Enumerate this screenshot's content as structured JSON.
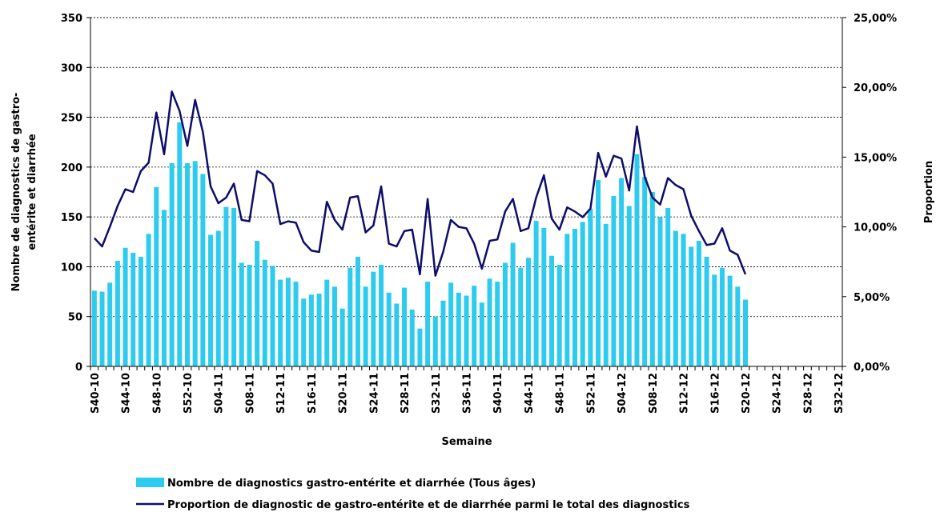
{
  "chart_data": {
    "type": "bar-line",
    "x_label": "Semaine",
    "y_label": [
      "Nombre de diagnostics de gastro-",
      "entérite et diarrhée"
    ],
    "y2_label": "Proportion",
    "categories": [
      "S40-10",
      null,
      null,
      null,
      "S44-10",
      null,
      null,
      null,
      "S48-10",
      null,
      null,
      null,
      "S52-10",
      null,
      null,
      null,
      "S04-11",
      null,
      null,
      null,
      "S08-11",
      null,
      null,
      null,
      "S12-11",
      null,
      null,
      null,
      "S16-11",
      null,
      null,
      null,
      "S20-11",
      null,
      null,
      null,
      "S24-11",
      null,
      null,
      null,
      "S28-11",
      null,
      null,
      null,
      "S32-11",
      null,
      null,
      null,
      "S36-11",
      null,
      null,
      null,
      "S40-11",
      null,
      null,
      null,
      "S44-11",
      null,
      null,
      null,
      "S48-11",
      null,
      null,
      null,
      "S52-11",
      null,
      null,
      null,
      "S04-12",
      null,
      null,
      null,
      "S08-12",
      null,
      null,
      null,
      "S12-12",
      null,
      null,
      null,
      "S16-12",
      null,
      null,
      null,
      "S20-12",
      null,
      null,
      null,
      "S24-12",
      null,
      null,
      null,
      "S28-12",
      null,
      null,
      null,
      "S32-12"
    ],
    "series": [
      {
        "name": "Nombre de diagnostics gastro-entérite et diarrhée (Tous âges)",
        "type": "bar",
        "color": "#2ccbef",
        "values": [
          76,
          75,
          84,
          106,
          119,
          114,
          110,
          133,
          180,
          157,
          204,
          245,
          204,
          206,
          193,
          132,
          136,
          160,
          159,
          104,
          102,
          126,
          107,
          101,
          87,
          89,
          85,
          68,
          72,
          73,
          87,
          80,
          58,
          99,
          110,
          80,
          95,
          102,
          74,
          63,
          79,
          57,
          38,
          85,
          50,
          66,
          84,
          74,
          71,
          81,
          64,
          88,
          85,
          104,
          124,
          99,
          109,
          146,
          139,
          111,
          102,
          133,
          138,
          145,
          158,
          187,
          143,
          171,
          189,
          161,
          213,
          190,
          175,
          150,
          159,
          136,
          133,
          120,
          126,
          110,
          92,
          99,
          91,
          80,
          67,
          null,
          null,
          null,
          null,
          null,
          null,
          null,
          null,
          null,
          null,
          null,
          null
        ]
      },
      {
        "name": "Proportion de diagnostic de gastro-entérite et de diarrhée parmi le total des diagnostics",
        "type": "line",
        "axis": "y2",
        "color": "#0d0d6b",
        "values": [
          9.2,
          8.6,
          10.0,
          11.5,
          12.7,
          12.5,
          14.0,
          14.6,
          18.2,
          15.2,
          19.7,
          18.3,
          15.8,
          19.1,
          16.8,
          12.9,
          11.7,
          12.1,
          13.1,
          10.5,
          10.4,
          14.0,
          13.7,
          13.1,
          10.2,
          10.4,
          10.3,
          8.9,
          8.3,
          8.2,
          11.8,
          10.5,
          9.8,
          12.1,
          12.2,
          9.6,
          10.1,
          12.9,
          8.8,
          8.6,
          9.7,
          9.8,
          6.6,
          12.0,
          6.5,
          8.2,
          10.5,
          10.0,
          9.9,
          8.8,
          7.0,
          9.0,
          9.1,
          11.1,
          12.0,
          9.7,
          9.9,
          12.1,
          13.7,
          10.6,
          9.8,
          11.4,
          11.1,
          10.7,
          11.3,
          15.3,
          13.6,
          15.1,
          14.9,
          12.6,
          17.2,
          13.6,
          12.1,
          11.6,
          13.5,
          13.0,
          12.7,
          10.8,
          9.7,
          8.7,
          8.8,
          9.9,
          8.3,
          8.0,
          6.6,
          null,
          null,
          null,
          null,
          null,
          null,
          null,
          null,
          null,
          null,
          null,
          null
        ]
      }
    ],
    "ylim": [
      0,
      350
    ],
    "yticks": [
      0,
      50,
      100,
      150,
      200,
      250,
      300,
      350
    ],
    "y2lim": [
      0,
      25
    ],
    "y2ticks": [
      {
        "value": 0,
        "label": "0,00%"
      },
      {
        "value": 5,
        "label": "5,00%"
      },
      {
        "value": 10,
        "label": "10,00%"
      },
      {
        "value": 15,
        "label": "15,00%"
      },
      {
        "value": 20,
        "label": "20,00%"
      },
      {
        "value": 25,
        "label": "25,00%"
      }
    ],
    "grid": true
  }
}
